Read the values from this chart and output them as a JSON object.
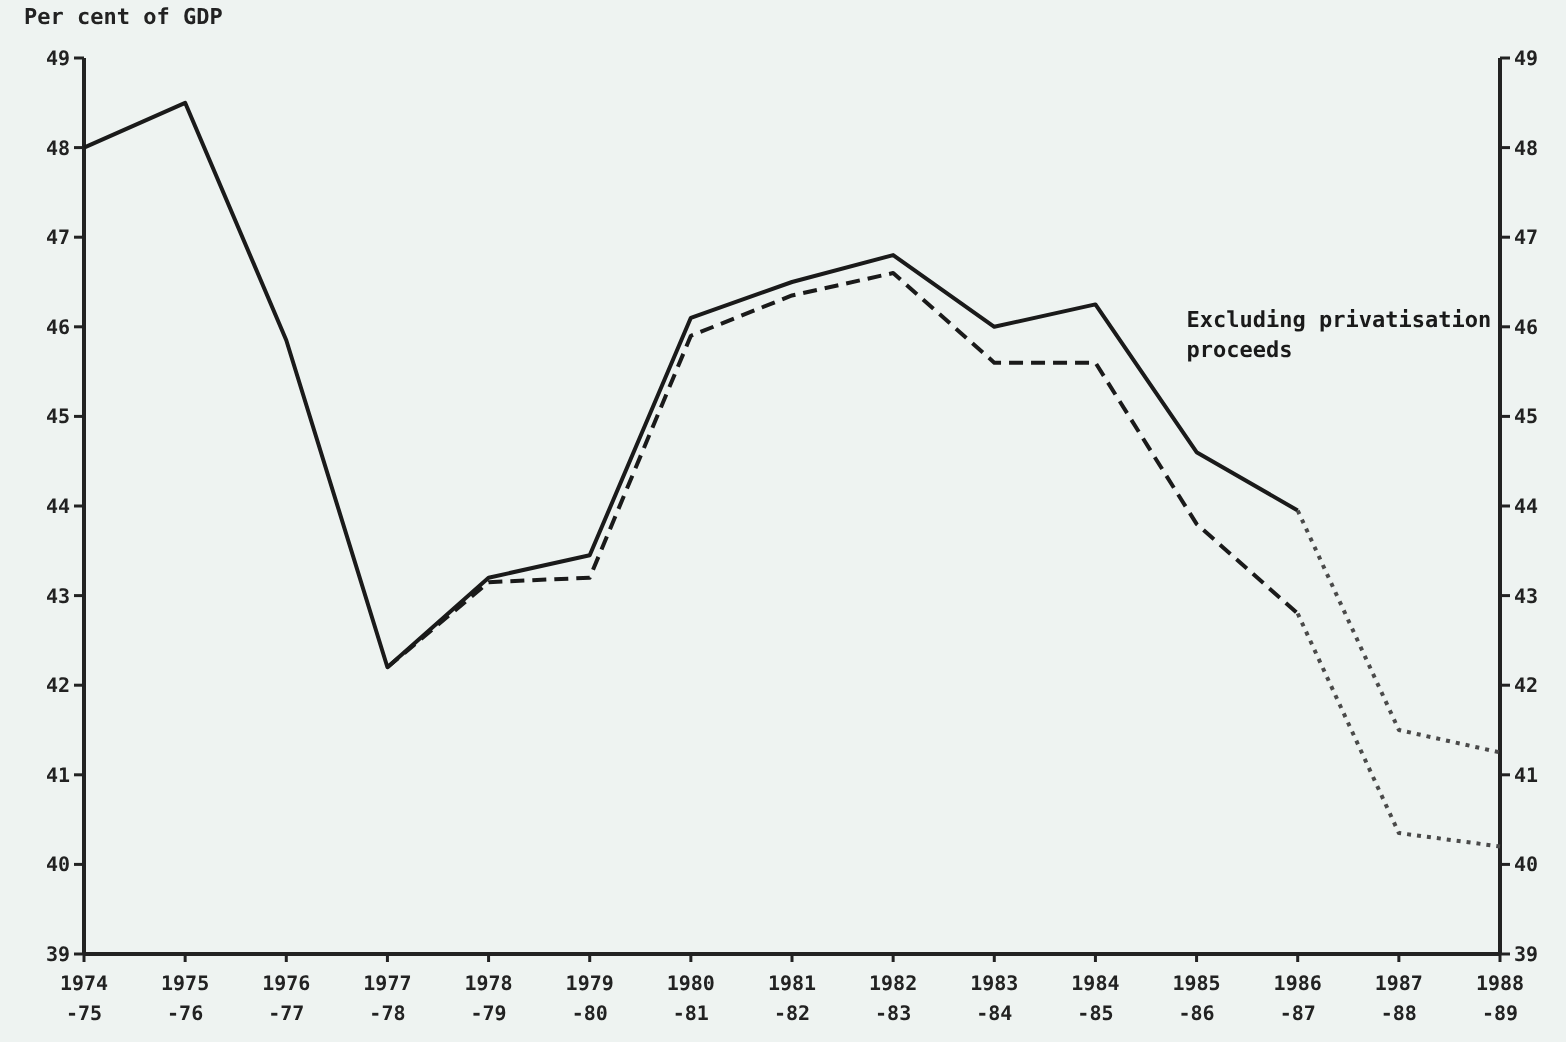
{
  "chart_data": {
    "type": "line",
    "ylabel": "Per cent of GDP",
    "categories": [
      "1974\n-75",
      "1975\n-76",
      "1976\n-77",
      "1977\n-78",
      "1978\n-79",
      "1979\n-80",
      "1980\n-81",
      "1981\n-82",
      "1982\n-83",
      "1983\n-84",
      "1984\n-85",
      "1985\n-86",
      "1986\n-87",
      "1987\n-88",
      "1988\n-89"
    ],
    "series": [
      {
        "color": "#1a1a1a",
        "line_style": "solid",
        "values": [
          48.0,
          48.5,
          45.85,
          42.2,
          43.2,
          43.45,
          46.1,
          46.5,
          46.8,
          46.0,
          46.25,
          44.6,
          43.95,
          null,
          null
        ]
      },
      {
        "name": "Excluding privatisation proceeds",
        "color": "#1a1a1a",
        "line_style": "dashed",
        "values": [
          null,
          null,
          null,
          42.2,
          43.15,
          43.2,
          45.9,
          46.35,
          46.6,
          45.6,
          45.6,
          43.8,
          42.8,
          null,
          null
        ]
      },
      {
        "color": "#4a4a4a",
        "line_style": "dotted",
        "values": [
          null,
          null,
          null,
          null,
          null,
          null,
          null,
          null,
          null,
          null,
          null,
          null,
          43.95,
          41.5,
          41.25
        ]
      },
      {
        "color": "#4a4a4a",
        "line_style": "dotted",
        "values": [
          null,
          null,
          null,
          null,
          null,
          null,
          null,
          null,
          null,
          null,
          null,
          null,
          42.8,
          40.35,
          40.2
        ]
      }
    ],
    "ylim": [
      39,
      49
    ],
    "yticks": [
      39,
      40,
      41,
      42,
      43,
      44,
      45,
      46,
      47,
      48,
      49
    ],
    "y2lim": [
      39,
      49
    ],
    "y2ticks": [
      39,
      40,
      41,
      42,
      43,
      44,
      45,
      46,
      47,
      48,
      49
    ],
    "grid": false,
    "legend": false,
    "marker": "none"
  }
}
